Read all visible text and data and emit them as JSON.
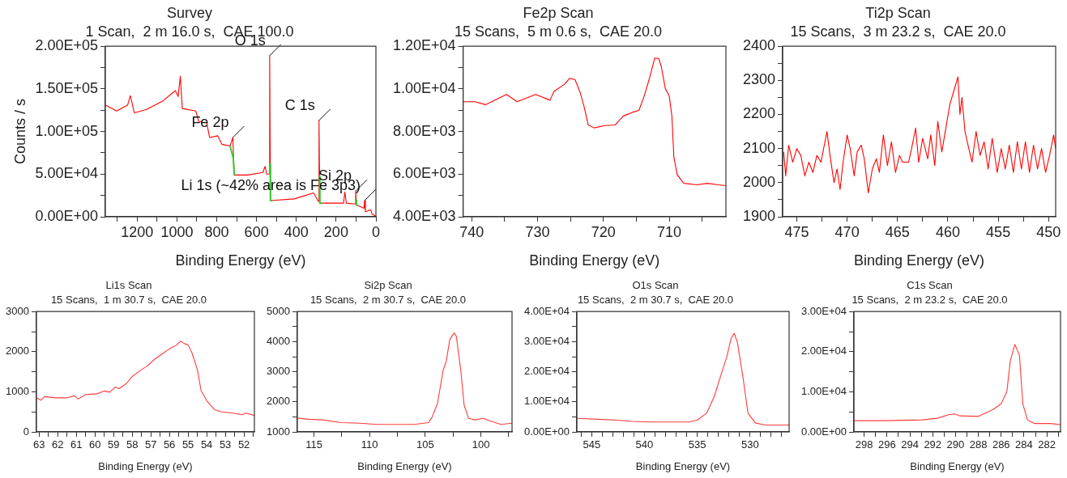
{
  "chart_data": [
    {
      "type": "line",
      "title": "Survey",
      "subtitle": "1 Scan,  2 m 16.0 s,  CAE 100.0",
      "xlabel": "Binding Energy (eV)",
      "ylabel": "Counts / s",
      "series": [
        {
          "color": "#ff0000",
          "x": [
            1358,
            1303,
            1248,
            1234,
            1214,
            1152,
            1070,
            1008,
            994,
            983,
            973,
            905,
            891,
            850,
            836,
            795,
            774,
            733,
            719,
            712,
            644,
            568,
            557,
            548,
            537,
            534,
            530,
            410,
            314,
            289,
            286,
            282,
            163,
            156,
            149,
            105,
            102,
            98,
            60,
            57,
            53,
            26,
            19,
            2
          ],
          "values": [
            131000,
            124000,
            131000,
            142000,
            122000,
            126000,
            136000,
            148000,
            141000,
            165000,
            127000,
            124000,
            112000,
            110000,
            93000,
            95000,
            85000,
            83000,
            93000,
            49000,
            49000,
            52000,
            59000,
            50000,
            50000,
            189000,
            19000,
            21000,
            28000,
            18000,
            113000,
            16000,
            16000,
            29000,
            16000,
            15000,
            30000,
            14000,
            10000,
            19000,
            6000,
            8000,
            3000,
            1000
          ]
        },
        {
          "color": "#33cc33",
          "x": [
            733,
            717,
            712,
            700,
            531,
            530,
            520,
            510,
            283,
            282,
            270,
            260,
            99,
            98,
            90
          ],
          "values": [
            83000,
            69000,
            49000,
            null,
            62000,
            19000,
            19000,
            null,
            48000,
            16000,
            16000,
            null,
            20000,
            14000,
            13000
          ]
        }
      ],
      "xlim": [
        1360,
        0
      ],
      "xticks": [
        {
          "value": 1300,
          "label": null
        },
        1200,
        {
          "value": 1100,
          "label": null
        },
        1000,
        {
          "value": 900,
          "label": null
        },
        800,
        {
          "value": 700,
          "label": null
        },
        600,
        {
          "value": 500,
          "label": null
        },
        400,
        {
          "value": 300,
          "label": null
        },
        200,
        {
          "value": 100,
          "label": null
        },
        0
      ],
      "ylim": [
        0,
        200000
      ],
      "yticks": [
        {
          "value": 0,
          "label": "0.00E+00"
        },
        {
          "value": 25000,
          "label": null
        },
        {
          "value": 50000,
          "label": "5.00E+04"
        },
        {
          "value": 75000,
          "label": null
        },
        {
          "value": 100000,
          "label": "1.00E+05"
        },
        {
          "value": 125000,
          "label": null
        },
        {
          "value": 150000,
          "label": "1.50E+05"
        },
        {
          "value": 175000,
          "label": null
        },
        {
          "value": 200000,
          "label": "2.00E+05"
        }
      ],
      "annotations": [
        {
          "text": "O 1s",
          "x": 534,
          "y": 189000
        },
        {
          "text": "Fe 2p",
          "x": 719,
          "y": 93000
        },
        {
          "text": "C 1s",
          "x": 286,
          "y": 113000
        },
        {
          "text": "Si 2p",
          "x": 102,
          "y": 30000
        },
        {
          "text": "Li 1s (~42% area is Fe 3p3)",
          "x": 57,
          "y": 19000
        }
      ]
    },
    {
      "type": "line",
      "title": "Fe2p Scan",
      "subtitle": "15 Scans,  5 m 0.6 s,  CAE 20.0",
      "xlabel": "Binding Energy (eV)",
      "series": [
        {
          "color": "#ff0000",
          "x": [
            741.3,
            739.5,
            737.9,
            734.7,
            733.1,
            730.3,
            728.1,
            727.5,
            725.9,
            725.1,
            724.3,
            723.5,
            722.9,
            722.3,
            721.4,
            719.8,
            718.2,
            717.0,
            715.4,
            714.6,
            713.8,
            713.0,
            712.2,
            711.6,
            711.2,
            710.6,
            710.0,
            709.6,
            709.3,
            708.8,
            707.8,
            705.8,
            704.2,
            702.6,
            701.4
          ],
          "values": [
            9400,
            9400,
            9260,
            9740,
            9400,
            9740,
            9470,
            9880,
            10220,
            10500,
            10430,
            9810,
            9130,
            8310,
            8170,
            8280,
            8310,
            8720,
            8920,
            8990,
            9670,
            10500,
            11450,
            11430,
            11040,
            10020,
            9670,
            8720,
            6800,
            5980,
            5570,
            5500,
            5570,
            5500,
            5460
          ]
        }
      ],
      "xlim": [
        741.3,
        701.4
      ],
      "xticks": [
        740,
        {
          "value": 735,
          "label": null
        },
        730,
        {
          "value": 725,
          "label": null
        },
        720,
        {
          "value": 715,
          "label": null
        },
        710,
        {
          "value": 705,
          "label": null
        }
      ],
      "ylim": [
        4000,
        12000
      ],
      "yticks": [
        {
          "value": 4000,
          "label": "4.00E+03"
        },
        {
          "value": 5000,
          "label": null
        },
        {
          "value": 6000,
          "label": "6.00E+03"
        },
        {
          "value": 7000,
          "label": null
        },
        {
          "value": 8000,
          "label": "8.00E+03"
        },
        {
          "value": 9000,
          "label": null
        },
        {
          "value": 10000,
          "label": "1.00E+04"
        },
        {
          "value": 11000,
          "label": null
        },
        {
          "value": 12000,
          "label": "1.20E+04"
        }
      ]
    },
    {
      "type": "line",
      "title": "Ti2p Scan",
      "subtitle": "15 Scans,  3 m 23.2 s,  CAE 20.0",
      "xlabel": "Binding Energy (eV)",
      "series": [
        {
          "color": "#ff0000",
          "x": [
            476.3,
            476.1,
            475.8,
            475.4,
            475.0,
            474.6,
            474.2,
            473.8,
            473.4,
            473.0,
            472.6,
            472.0,
            471.7,
            471.3,
            471.0,
            470.7,
            470.4,
            470.0,
            469.7,
            469.3,
            469.0,
            468.6,
            468.3,
            467.9,
            467.5,
            467.1,
            466.8,
            466.4,
            466.0,
            465.6,
            465.2,
            464.8,
            464.5,
            463.9,
            463.6,
            463.2,
            462.9,
            462.5,
            462.0,
            461.7,
            461.3,
            461.0,
            460.6,
            460.2,
            459.8,
            459.4,
            459.0,
            458.8,
            458.6,
            458.3,
            458.0,
            457.6,
            457.2,
            456.8,
            456.4,
            456.0,
            455.6,
            455.1,
            454.7,
            454.3,
            453.9,
            453.5,
            453.1,
            452.7,
            452.3,
            451.9,
            451.5,
            451.1,
            450.7,
            450.3,
            449.9,
            449.5,
            449.3
          ],
          "values": [
            2090,
            2020,
            2110,
            2060,
            2100,
            2080,
            2020,
            2060,
            2030,
            2080,
            2060,
            2150,
            2080,
            2000,
            2040,
            1980,
            2060,
            2140,
            2100,
            2020,
            2090,
            2110,
            2070,
            1970,
            2040,
            2070,
            2030,
            2140,
            2050,
            2120,
            2030,
            2080,
            2060,
            2060,
            2100,
            2160,
            2060,
            2130,
            2070,
            2140,
            2050,
            2180,
            2090,
            2160,
            2230,
            2270,
            2310,
            2200,
            2250,
            2150,
            2110,
            2060,
            2150,
            2080,
            2120,
            2040,
            2130,
            2030,
            2100,
            2040,
            2110,
            2030,
            2120,
            2040,
            2120,
            2030,
            2110,
            2040,
            2100,
            2030,
            2080,
            2140,
            2100
          ]
        }
      ],
      "xlim": [
        476.4,
        449.3
      ],
      "xticks": [
        475,
        {
          "value": 472.5,
          "label": null
        },
        470,
        {
          "value": 467.5,
          "label": null
        },
        465,
        {
          "value": 462.5,
          "label": null
        },
        460,
        {
          "value": 457.5,
          "label": null
        },
        455,
        {
          "value": 452.5,
          "label": null
        },
        450
      ],
      "ylim": [
        1900,
        2400
      ],
      "yticks": [
        1900,
        {
          "value": 1950,
          "label": null
        },
        2000,
        {
          "value": 2050,
          "label": null
        },
        2100,
        {
          "value": 2150,
          "label": null
        },
        2200,
        {
          "value": 2250,
          "label": null
        },
        2300,
        {
          "value": 2350,
          "label": null
        },
        2400
      ]
    },
    {
      "type": "line",
      "title": "Li1s Scan",
      "subtitle": "15 Scans,  1 m 30.7 s,  CAE 20.0",
      "xlabel": "Binding Energy (eV)",
      "series": [
        {
          "color": "#ff3b3b",
          "x": [
            63.14,
            62.9,
            62.7,
            62.1,
            61.5,
            61.1,
            60.9,
            60.5,
            59.9,
            59.5,
            59.2,
            58.9,
            58.7,
            58.3,
            58.0,
            57.5,
            57.2,
            56.8,
            56.4,
            56.0,
            55.6,
            55.4,
            55.2,
            55.0,
            54.8,
            54.5,
            54.3,
            54.0,
            53.6,
            53.2,
            52.6,
            52.1,
            51.9,
            51.44
          ],
          "values": [
            850,
            790,
            880,
            850,
            850,
            900,
            820,
            930,
            950,
            1020,
            990,
            1120,
            1080,
            1210,
            1380,
            1550,
            1640,
            1810,
            1940,
            2070,
            2170,
            2260,
            2200,
            2170,
            1980,
            1550,
            1030,
            780,
            560,
            500,
            470,
            430,
            470,
            410
          ]
        }
      ],
      "xlim": [
        63.14,
        51.44
      ],
      "xticks": [
        63,
        {
          "value": 62.5,
          "label": null
        },
        62,
        {
          "value": 61.5,
          "label": null
        },
        61,
        {
          "value": 60.5,
          "label": null
        },
        60,
        {
          "value": 59.5,
          "label": null
        },
        59,
        {
          "value": 58.5,
          "label": null
        },
        58,
        {
          "value": 57.5,
          "label": null
        },
        57,
        {
          "value": 56.5,
          "label": null
        },
        56,
        {
          "value": 55.5,
          "label": null
        },
        55,
        {
          "value": 54.5,
          "label": null
        },
        54,
        {
          "value": 53.5,
          "label": null
        },
        53,
        {
          "value": 52.5,
          "label": null
        },
        52,
        {
          "value": 51.5,
          "label": null
        }
      ],
      "ylim": [
        0,
        3000
      ],
      "yticks": [
        0,
        {
          "value": 500,
          "label": null
        },
        1000,
        {
          "value": 1500,
          "label": null
        },
        2000,
        {
          "value": 2500,
          "label": null
        },
        3000
      ]
    },
    {
      "type": "line",
      "title": "Si2p Scan",
      "subtitle": "15 Scans,  2 m 30.7 s,  CAE 20.0",
      "xlabel": "Binding Energy (eV)",
      "series": [
        {
          "color": "#ff3b3b",
          "x": [
            116.5,
            115.5,
            114.2,
            112.6,
            110.9,
            109.3,
            107.7,
            106.0,
            104.7,
            104.4,
            103.9,
            103.4,
            103.1,
            102.8,
            102.4,
            102.2,
            101.8,
            101.5,
            101.1,
            100.5,
            99.8,
            99.2,
            98.2,
            97.2
          ],
          "values": [
            1460,
            1420,
            1400,
            1310,
            1290,
            1250,
            1250,
            1250,
            1310,
            1480,
            1940,
            3030,
            3370,
            4060,
            4290,
            4170,
            3030,
            1880,
            1450,
            1400,
            1450,
            1370,
            1250,
            1290
          ]
        }
      ],
      "xlim": [
        116.5,
        97.2
      ],
      "xticks": [
        115,
        {
          "value": 112.5,
          "label": null
        },
        110,
        {
          "value": 107.5,
          "label": null
        },
        105,
        {
          "value": 102.5,
          "label": null
        },
        100,
        {
          "value": 97.5,
          "label": null
        }
      ],
      "ylim": [
        1000,
        5000
      ],
      "yticks": [
        1000,
        {
          "value": 1500,
          "label": null
        },
        2000,
        {
          "value": 2500,
          "label": null
        },
        3000,
        {
          "value": 3500,
          "label": null
        },
        4000,
        {
          "value": 4500,
          "label": null
        },
        5000
      ]
    },
    {
      "type": "line",
      "title": "O1s Scan",
      "subtitle": "15 Scans,  2 m 30.7 s,  CAE 20.0",
      "xlabel": "Binding Energy (eV)",
      "series": [
        {
          "color": "#ff3b3b",
          "x": [
            546.4,
            544.4,
            542.6,
            541.2,
            539.4,
            537.6,
            535.8,
            535.0,
            534.1,
            533.4,
            532.7,
            532.2,
            531.8,
            531.5,
            531.2,
            530.7,
            530.2,
            529.5,
            528.6,
            526.3
          ],
          "values": [
            4500,
            4200,
            3900,
            3500,
            3300,
            3300,
            3300,
            3900,
            6300,
            11700,
            19500,
            24900,
            31000,
            32800,
            29800,
            18900,
            6300,
            3000,
            2300,
            2300
          ]
        }
      ],
      "xlim": [
        546.4,
        526.3
      ],
      "xticks": [
        {
          "value": 546,
          "label": null
        },
        545,
        {
          "value": 544,
          "label": null
        },
        {
          "value": 543,
          "label": null
        },
        {
          "value": 542,
          "label": null
        },
        {
          "value": 541,
          "label": null
        },
        540,
        {
          "value": 539,
          "label": null
        },
        {
          "value": 538,
          "label": null
        },
        {
          "value": 537,
          "label": null
        },
        {
          "value": 536,
          "label": null
        },
        535,
        {
          "value": 534,
          "label": null
        },
        {
          "value": 533,
          "label": null
        },
        {
          "value": 532,
          "label": null
        },
        {
          "value": 531,
          "label": null
        },
        530,
        {
          "value": 529,
          "label": null
        },
        {
          "value": 528,
          "label": null
        },
        {
          "value": 527,
          "label": null
        }
      ],
      "ylim": [
        0,
        40000
      ],
      "yticks": [
        {
          "value": 0,
          "label": "0.00E+00"
        },
        {
          "value": 5000,
          "label": null
        },
        {
          "value": 10000,
          "label": "1.00E+04"
        },
        {
          "value": 15000,
          "label": null
        },
        {
          "value": 20000,
          "label": "2.00E+04"
        },
        {
          "value": 25000,
          "label": null
        },
        {
          "value": 30000,
          "label": "3.00E+04"
        },
        {
          "value": 35000,
          "label": null
        },
        {
          "value": 40000,
          "label": "4.00E+04"
        }
      ]
    },
    {
      "type": "line",
      "title": "C1s Scan",
      "subtitle": "15 Scans,  2 m 23.2 s,  CAE 20.0",
      "xlabel": "Binding Energy (eV)",
      "series": [
        {
          "color": "#ff3b3b",
          "x": [
            298.9,
            296.2,
            294.6,
            292.9,
            291.6,
            290.6,
            290.1,
            289.6,
            288.6,
            288.0,
            287.3,
            286.7,
            286.0,
            285.5,
            285.2,
            284.8,
            284.4,
            284.1,
            283.7,
            283.1,
            281.7,
            280.8
          ],
          "values": [
            2800,
            2800,
            2900,
            3000,
            3400,
            4300,
            4500,
            4000,
            3900,
            3900,
            4800,
            5600,
            7000,
            10100,
            17700,
            21800,
            19100,
            7000,
            3000,
            2100,
            2100,
            1800
          ]
        }
      ],
      "xlim": [
        298.9,
        280.8
      ],
      "xticks": [
        298,
        {
          "value": 297,
          "label": null
        },
        296,
        {
          "value": 295,
          "label": null
        },
        294,
        {
          "value": 293,
          "label": null
        },
        292,
        {
          "value": 291,
          "label": null
        },
        290,
        {
          "value": 289,
          "label": null
        },
        288,
        {
          "value": 287,
          "label": null
        },
        286,
        {
          "value": 285,
          "label": null
        },
        284,
        {
          "value": 283,
          "label": null
        },
        282,
        {
          "value": 281,
          "label": null
        }
      ],
      "ylim": [
        0,
        30000
      ],
      "yticks": [
        {
          "value": 0,
          "label": "0.00E+00"
        },
        {
          "value": 5000,
          "label": null
        },
        {
          "value": 10000,
          "label": "1.00E+04"
        },
        {
          "value": 15000,
          "label": null
        },
        {
          "value": 20000,
          "label": "2.00E+04"
        },
        {
          "value": 25000,
          "label": null
        },
        {
          "value": 30000,
          "label": "3.00E+04"
        }
      ]
    }
  ]
}
